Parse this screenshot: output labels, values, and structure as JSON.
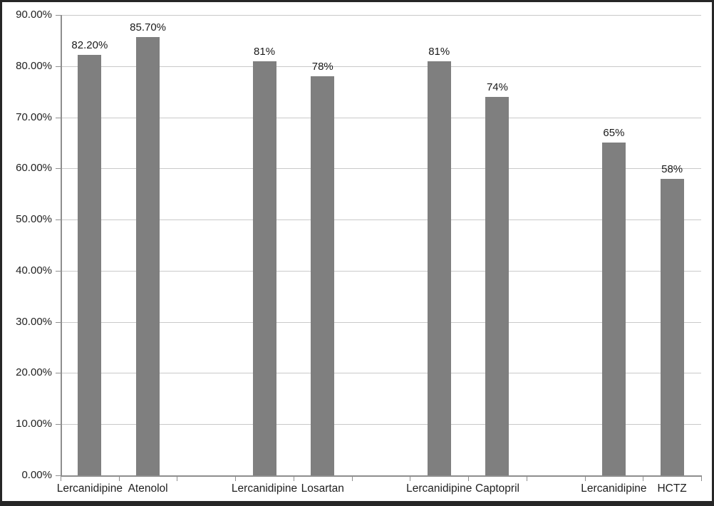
{
  "chart_data": {
    "type": "bar",
    "title": "",
    "xlabel": "",
    "ylabel": "",
    "ylim": [
      0,
      90
    ],
    "ytick_step": 10,
    "ytick_labels": [
      "0.00%",
      "10.00%",
      "20.00%",
      "30.00%",
      "40.00%",
      "50.00%",
      "60.00%",
      "70.00%",
      "80.00%",
      "90.00%"
    ],
    "grid": true,
    "legend": false,
    "categories": [
      "Lercanidipine",
      "Atenolol",
      "",
      "Lercanidipine",
      "Losartan",
      "",
      "Lercanidipine",
      "Captopril",
      "",
      "Lercanidipine",
      "HCTZ"
    ],
    "values": [
      82.2,
      85.7,
      null,
      81,
      78,
      null,
      81,
      74,
      null,
      65,
      58
    ],
    "data_labels": [
      "82.20%",
      "85.70%",
      "",
      "81%",
      "78%",
      "",
      "81%",
      "74%",
      "",
      "65%",
      "58%"
    ],
    "groups": [
      {
        "bars": [
          {
            "category": "Lercanidipine",
            "value": 82.2,
            "label": "82.20%"
          },
          {
            "category": "Atenolol",
            "value": 85.7,
            "label": "85.70%"
          }
        ]
      },
      {
        "bars": [
          {
            "category": "Lercanidipine",
            "value": 81,
            "label": "81%"
          },
          {
            "category": "Losartan",
            "value": 78,
            "label": "78%"
          }
        ]
      },
      {
        "bars": [
          {
            "category": "Lercanidipine",
            "value": 81,
            "label": "81%"
          },
          {
            "category": "Captopril",
            "value": 74,
            "label": "74%"
          }
        ]
      },
      {
        "bars": [
          {
            "category": "Lercanidipine",
            "value": 65,
            "label": "65%"
          },
          {
            "category": "HCTZ",
            "value": 58,
            "label": "58%"
          }
        ]
      }
    ]
  },
  "colors": {
    "bar_fill": "#7f7f7f",
    "gridline": "#c9c9c9",
    "axis": "#8e8e8e",
    "text": "#1f1f1f",
    "frame_border": "#262626",
    "background": "#ffffff"
  }
}
